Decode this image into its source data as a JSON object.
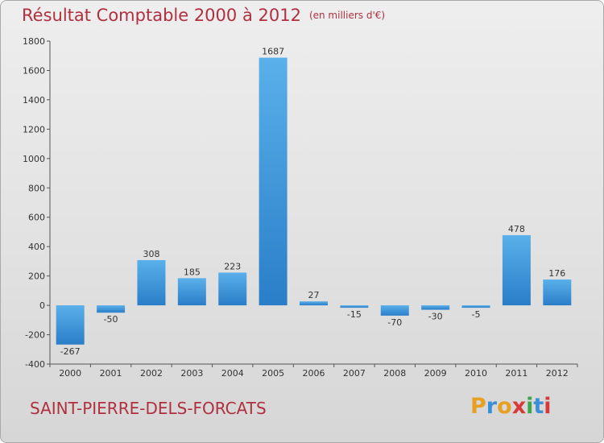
{
  "header": {
    "title": "Résultat Comptable 2000 à 2012",
    "unit": "(en milliers d'€)"
  },
  "footer": {
    "commune": "SAINT-PIERRE-DELS-FORCATS",
    "logo_letters": [
      "P",
      "r",
      "o",
      "x",
      "i",
      "t",
      "i"
    ],
    "logo_colors": [
      "#e8a020",
      "#3a8fd6",
      "#e8a020",
      "#d63a3a",
      "#3aa64a",
      "#3a8fd6",
      "#d63a3a"
    ]
  },
  "colors": {
    "bar_top": "#5ab0ea",
    "bar_bottom": "#2a7ec8",
    "title": "#b03040"
  },
  "chart_data": {
    "type": "bar",
    "categories": [
      "2000",
      "2001",
      "2002",
      "2003",
      "2004",
      "2005",
      "2006",
      "2007",
      "2008",
      "2009",
      "2010",
      "2011",
      "2012"
    ],
    "values": [
      -267,
      -50,
      308,
      185,
      223,
      1687,
      27,
      -15,
      -70,
      -30,
      -5,
      478,
      176
    ],
    "ylim": [
      -400,
      1800
    ],
    "yticks": [
      -400,
      -200,
      0,
      200,
      400,
      600,
      800,
      1000,
      1200,
      1400,
      1600,
      1800
    ],
    "grid": false
  }
}
